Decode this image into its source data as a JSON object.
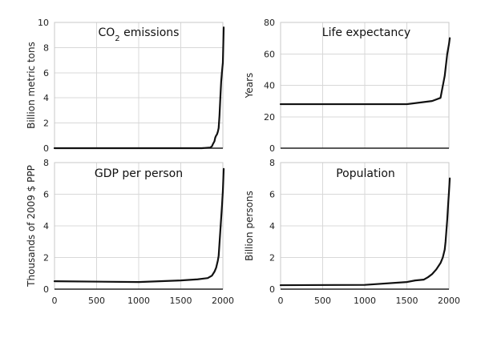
{
  "figure": {
    "line_color": "#111111",
    "grid_color": "#d8d8d8"
  },
  "chart_data": [
    {
      "type": "line",
      "title": "CO2 emissions",
      "title_main": "CO",
      "title_sub": "2",
      "title_rest": " emissions",
      "xlabel": "",
      "ylabel": "Billion metric tons",
      "xlim": [
        0,
        2000
      ],
      "ylim": [
        0,
        10
      ],
      "xticks": [
        0,
        500,
        1000,
        1500,
        2000
      ],
      "yticks": [
        0,
        2,
        4,
        6,
        8,
        10
      ],
      "show_xtick_labels": false,
      "grid": true,
      "series": [
        {
          "x": [
            0,
            1750,
            1850,
            1870,
            1880,
            1900,
            1910,
            1920,
            1930,
            1940,
            1950,
            1960,
            1970,
            1980,
            1990,
            2000,
            2010
          ],
          "y": [
            0,
            0.0,
            0.05,
            0.15,
            0.3,
            0.55,
            0.85,
            1.0,
            1.1,
            1.3,
            1.6,
            2.6,
            4.0,
            5.3,
            6.1,
            6.8,
            9.6
          ]
        }
      ]
    },
    {
      "type": "line",
      "title": "Life expectancy",
      "xlabel": "",
      "ylabel": "Years",
      "xlim": [
        0,
        2000
      ],
      "ylim": [
        0,
        80
      ],
      "xticks": [
        0,
        500,
        1000,
        1500,
        2000
      ],
      "yticks": [
        0,
        20,
        40,
        60,
        80
      ],
      "show_xtick_labels": false,
      "grid": true,
      "series": [
        {
          "x": [
            0,
            1500,
            1800,
            1900,
            1950,
            1980,
            2000,
            2010
          ],
          "y": [
            28,
            28,
            30,
            32,
            46,
            60,
            66,
            70
          ]
        }
      ]
    },
    {
      "type": "line",
      "title": "GDP per person",
      "xlabel": "",
      "ylabel": "Thousands of 2009 $ PPP",
      "xlim": [
        0,
        2000
      ],
      "ylim": [
        0,
        8
      ],
      "xticks": [
        0,
        500,
        1000,
        1500,
        2000
      ],
      "yticks": [
        0,
        2,
        4,
        6,
        8
      ],
      "show_xtick_labels": true,
      "grid": true,
      "series": [
        {
          "x": [
            0,
            1000,
            1500,
            1700,
            1820,
            1870,
            1900,
            1920,
            1940,
            1950,
            1960,
            1970,
            1980,
            1990,
            2000,
            2010
          ],
          "y": [
            0.5,
            0.45,
            0.55,
            0.62,
            0.7,
            0.85,
            1.1,
            1.35,
            1.8,
            2.1,
            2.9,
            3.7,
            4.5,
            5.3,
            6.2,
            7.6
          ]
        }
      ]
    },
    {
      "type": "line",
      "title": "Population",
      "xlabel": "",
      "ylabel": "Billion persons",
      "xlim": [
        0,
        2000
      ],
      "ylim": [
        0,
        8
      ],
      "xticks": [
        0,
        500,
        1000,
        1500,
        2000
      ],
      "yticks": [
        0,
        2,
        4,
        6,
        8
      ],
      "show_xtick_labels": true,
      "grid": true,
      "series": [
        {
          "x": [
            0,
            1000,
            1500,
            1600,
            1700,
            1750,
            1800,
            1850,
            1900,
            1927,
            1950,
            1960,
            1970,
            1980,
            1990,
            2000,
            2010
          ],
          "y": [
            0.25,
            0.27,
            0.45,
            0.55,
            0.6,
            0.75,
            0.95,
            1.25,
            1.65,
            2.0,
            2.5,
            3.0,
            3.7,
            4.4,
            5.3,
            6.1,
            7.0
          ]
        }
      ]
    }
  ]
}
